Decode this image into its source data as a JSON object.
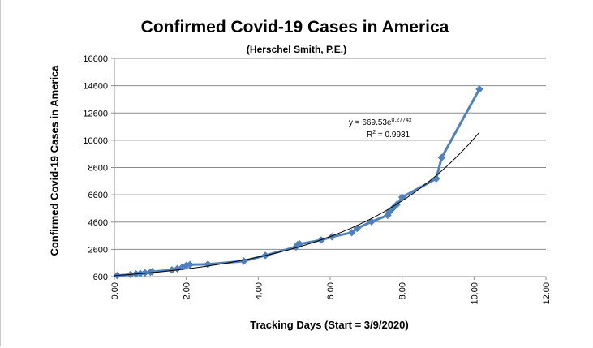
{
  "chart_data": {
    "type": "scatter",
    "title": "Confirmed Covid-19 Cases in America",
    "subtitle": "(Herschel Smith, P.E.)",
    "xlabel": "Tracking Days (Start = 3/9/2020)",
    "ylabel": "Confirmed Covid-19 Cases in America",
    "xlim": [
      0,
      12
    ],
    "ylim": [
      600,
      16600
    ],
    "x_ticks": [
      "0.00",
      "2.00",
      "4.00",
      "6.00",
      "8.00",
      "10.00",
      "12.00"
    ],
    "y_ticks": [
      "600",
      "2600",
      "4600",
      "6600",
      "8600",
      "10600",
      "12600",
      "14600",
      "16600"
    ],
    "grid": "horizontal",
    "legend": "none",
    "series": [
      {
        "color": "#4f81bd",
        "marker": "diamond",
        "x": [
          0.08,
          0.45,
          0.6,
          0.72,
          0.85,
          1.0,
          1.05,
          1.6,
          1.75,
          1.9,
          2.0,
          2.1,
          2.6,
          3.6,
          4.2,
          5.05,
          5.1,
          5.15,
          5.75,
          6.05,
          6.6,
          6.75,
          7.15,
          7.6,
          7.65,
          7.75,
          7.85,
          8.0,
          8.95,
          9.1,
          10.15
        ],
        "y": [
          680,
          750,
          800,
          830,
          880,
          930,
          960,
          1090,
          1180,
          1320,
          1420,
          1480,
          1500,
          1740,
          2150,
          2780,
          2950,
          2990,
          3280,
          3520,
          3830,
          4140,
          4630,
          5100,
          5350,
          5630,
          5880,
          6420,
          7780,
          9330,
          14350
        ]
      }
    ],
    "trendline": {
      "type": "exponential",
      "a": 669.53,
      "b": 0.2774,
      "x_range": [
        0,
        10.15
      ],
      "equation_base": "y = 669.53e",
      "equation_exp": "0.2774x",
      "r2_prefix": "R",
      "r2_sup": "2",
      "r2_suffix": " = 0.9931"
    }
  }
}
